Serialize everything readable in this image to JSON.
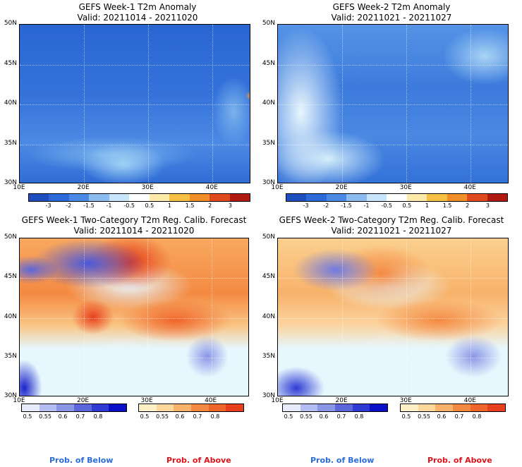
{
  "panels": [
    {
      "title": "GEFS Week-1 T2m Anomaly",
      "valid": "Valid: 20211014 - 20211020"
    },
    {
      "title": "GEFS Week-2 T2m Anomaly",
      "valid": "Valid: 20211021 - 20211027"
    },
    {
      "title": "GEFS Week-1 Two-Category T2m Reg. Calib. Forecast",
      "valid": "Valid: 20211014 - 20211020"
    },
    {
      "title": "GEFS Week-2 Two-Category T2m Reg. Calib. Forecast",
      "valid": "Valid: 20211021 - 20211027"
    }
  ],
  "lat_labels": [
    "50N",
    "45N",
    "40N",
    "35N",
    "30N"
  ],
  "lon_labels": [
    "10E",
    "20E",
    "30E",
    "40E"
  ],
  "anomaly_colorbar": {
    "labels": [
      "-3",
      "-2",
      "-1.5",
      "-1",
      "-0.5",
      "0.5",
      "1",
      "1.5",
      "2",
      "3"
    ],
    "colors": [
      "#1f4fbf",
      "#2b6ad8",
      "#4a8ae6",
      "#8bbcf2",
      "#c7e6fb",
      "#ffffff",
      "#fde9a8",
      "#f6c044",
      "#f08e2a",
      "#e04a1e",
      "#b01a10"
    ]
  },
  "below_colorbar": {
    "labels": [
      "0.5",
      "0.55",
      "0.6",
      "0.7",
      "0.8"
    ],
    "colors": [
      "#e8ecfa",
      "#b3bdef",
      "#8a96e6",
      "#5b66dd",
      "#2f3bd4",
      "#0a10c8"
    ]
  },
  "above_colorbar": {
    "labels": [
      "0.5",
      "0.55",
      "0.6",
      "0.7",
      "0.8"
    ],
    "colors": [
      "#fff0c8",
      "#fdd79b",
      "#f8b26a",
      "#f48a42",
      "#f0652a",
      "#e8401c"
    ]
  },
  "footer": {
    "below_label": "Prob. of Below",
    "above_label": "Prob. of Above"
  },
  "colors": {
    "below": "#2a6bd6",
    "above": "#d8141c"
  }
}
